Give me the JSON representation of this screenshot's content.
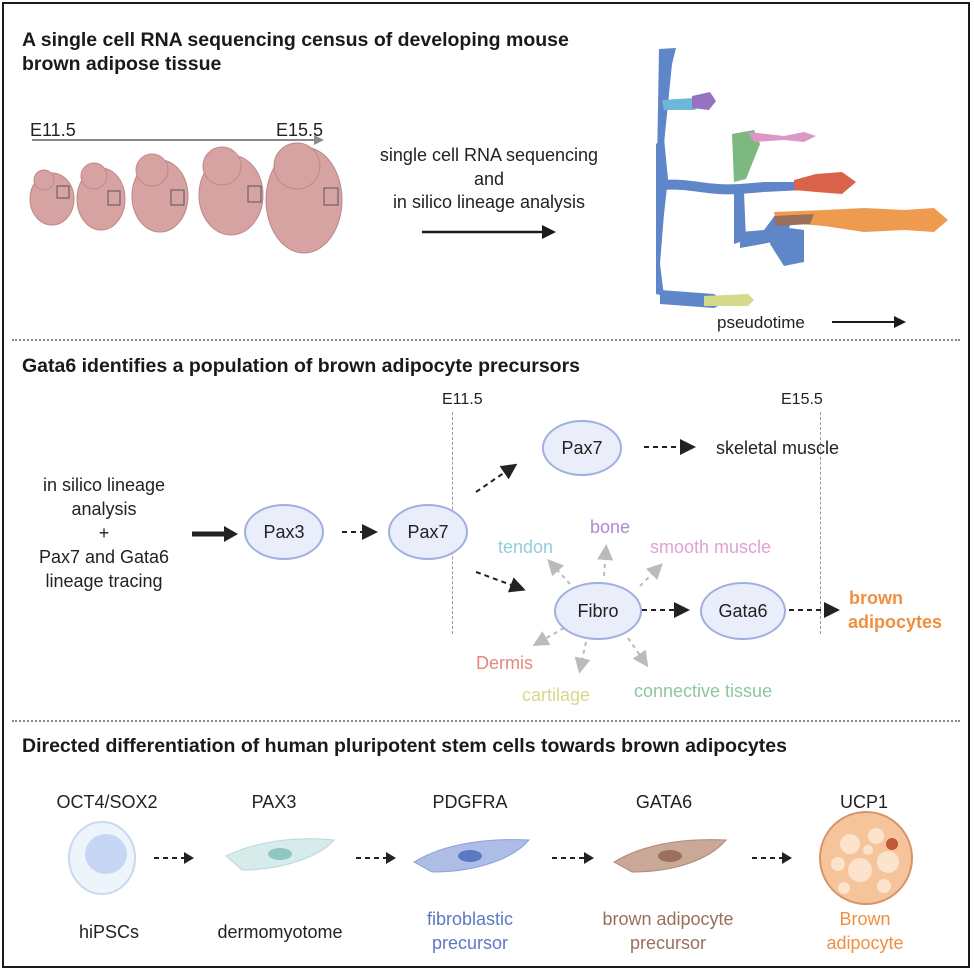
{
  "sections": {
    "census": {
      "title_line1": "A single cell RNA sequencing census of developing mouse",
      "title_line2": "brown adipose tissue",
      "time_start": "E11.5",
      "time_end": "E15.5",
      "method_line1": "single cell RNA sequencing",
      "method_line2": "and",
      "method_line3": "in silico lineage analysis",
      "pseudotime_label": "pseudotime"
    },
    "gata6": {
      "title": "Gata6 identifies a population of brown adipocyte precursors",
      "input_line1": "in silico lineage",
      "input_line2": "analysis",
      "input_line3": "+",
      "input_line4": "Pax7 and Gata6",
      "input_line5": "lineage tracing",
      "marker_start": "E11.5",
      "marker_end": "E15.5",
      "nodes": {
        "pax3": "Pax3",
        "pax7": "Pax7",
        "pax7_top": "Pax7",
        "fibro": "Fibro",
        "gata6": "Gata6"
      },
      "outcomes": {
        "skeletal_muscle": "skeletal muscle",
        "tendon": "tendon",
        "bone": "bone",
        "smooth_muscle": "smooth muscle",
        "dermis": "Dermis",
        "cartilage": "cartilage",
        "connective_tissue": "connective tissue",
        "brown_line1": "brown",
        "brown_line2": "adipocytes"
      }
    },
    "directed": {
      "title": "Directed differentiation of human pluripotent stem cells towards brown adipocytes",
      "stages": [
        {
          "marker": "OCT4/SOX2",
          "label_line1": "hiPSCs",
          "label_line2": ""
        },
        {
          "marker": "PAX3",
          "label_line1": "dermomyotome",
          "label_line2": ""
        },
        {
          "marker": "PDGFRA",
          "label_line1": "fibroblastic",
          "label_line2": "precursor"
        },
        {
          "marker": "GATA6",
          "label_line1": "brown adipocyte",
          "label_line2": "precursor"
        },
        {
          "marker": "UCP1",
          "label_line1": "Brown",
          "label_line2": "adipocyte"
        }
      ]
    }
  },
  "colors": {
    "tendon": "#8fd0dc",
    "bone": "#a98ccf",
    "smooth_muscle": "#e3a0d4",
    "dermis": "#e08a7c",
    "cartilage": "#d6d88c",
    "connective_tissue": "#8ec79a",
    "brown_adipocytes": "#ef8f3f",
    "fibroblastic": "#5b79c2",
    "brown_precursor": "#9a6f5b",
    "brown_adipocyte": "#ef8f3f",
    "node_fill": "#e9eefa",
    "node_border": "#9fb0e0"
  }
}
